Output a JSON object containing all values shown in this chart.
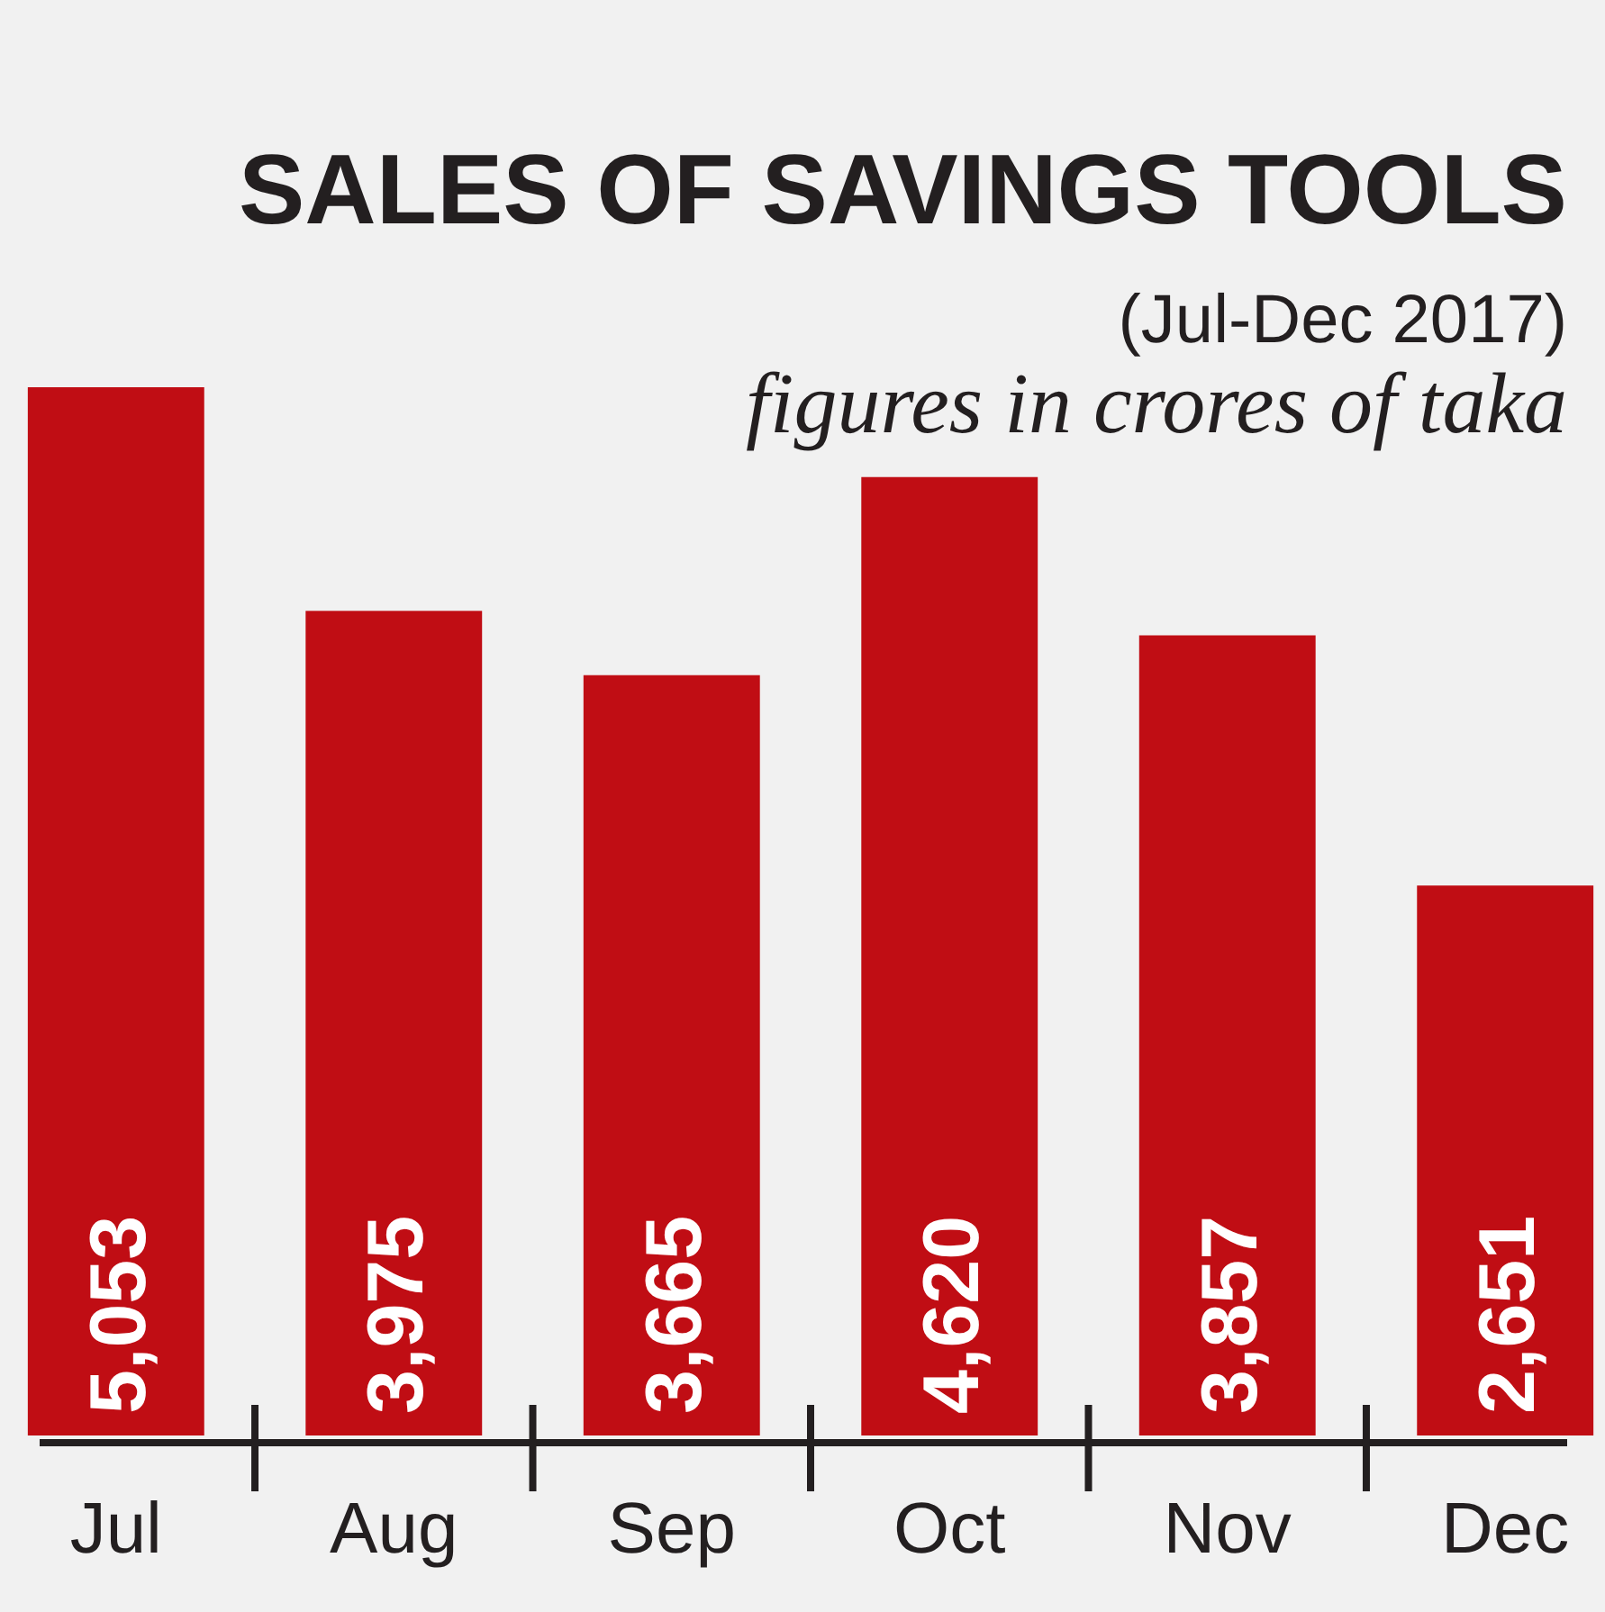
{
  "chart_data": {
    "type": "bar",
    "title": "SALES OF SAVINGS TOOLS",
    "subtitle": "(Jul-Dec 2017)",
    "annotations": [
      "figures in crores of taka"
    ],
    "categories": [
      "Jul",
      "Aug",
      "Sep",
      "Oct",
      "Nov",
      "Dec"
    ],
    "values": [
      5053,
      3975,
      3665,
      4620,
      3857,
      2651
    ],
    "value_labels": [
      "5,053",
      "3,975",
      "3,665",
      "4,620",
      "3,857",
      "2,651"
    ],
    "color": "#c00d14"
  }
}
